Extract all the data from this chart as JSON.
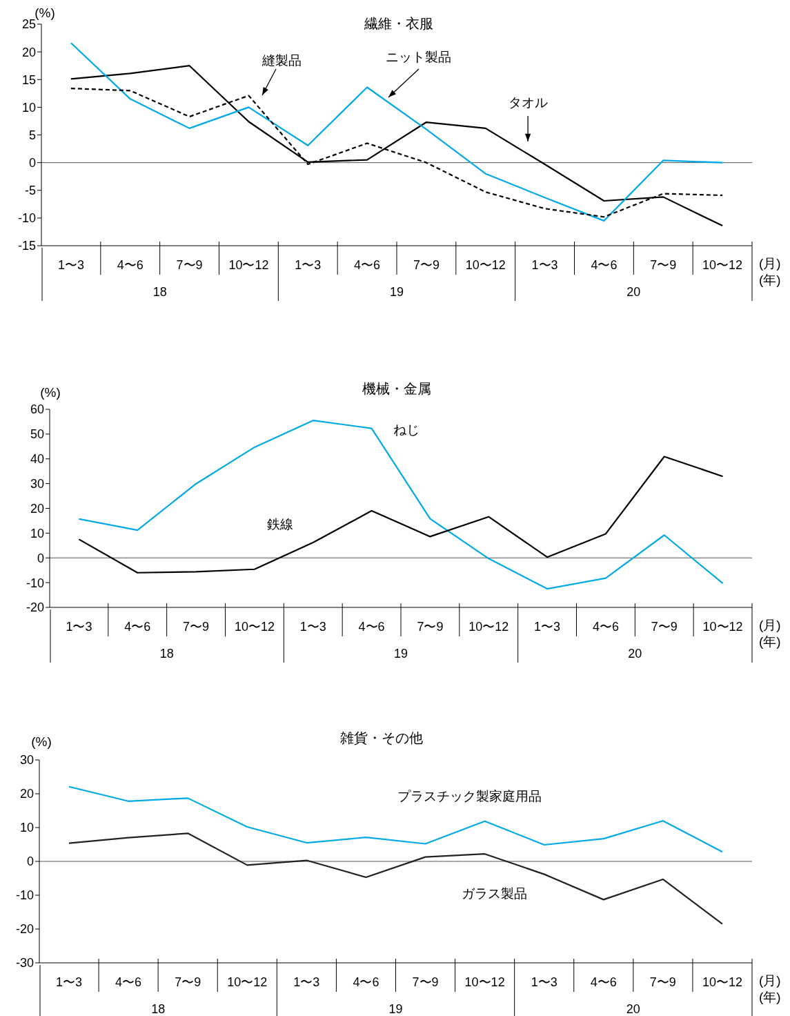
{
  "chart_data": [
    {
      "type": "line",
      "title": "繊維・衣服",
      "ylabel": "(%)",
      "xlabel": "(月)\n(年)",
      "categories": [
        "1〜3",
        "4〜6",
        "7〜9",
        "10〜12",
        "1〜3",
        "4〜6",
        "7〜9",
        "10〜12",
        "1〜3",
        "4〜6",
        "7〜9",
        "10〜12"
      ],
      "annotations": [
        "18",
        "19",
        "20"
      ],
      "ylim": [
        -15,
        25
      ],
      "yticks": [
        -15,
        -10,
        -5,
        0,
        5,
        10,
        15,
        20,
        25
      ],
      "grid": false,
      "ref_lines": [
        {
          "axis": "y",
          "value": 0,
          "color": "#555555"
        }
      ],
      "series": [
        {
          "name": "タオル",
          "color": "#000000",
          "line_style": "solid",
          "values": [
            15.1,
            16.1,
            17.5,
            7.4,
            0.1,
            0.5,
            7.3,
            6.2,
            -0.3,
            -6.9,
            -6.2,
            -11.4
          ]
        },
        {
          "name": "ニット製品",
          "color": "#00a9e8",
          "line_style": "solid",
          "values": [
            21.6,
            11.5,
            6.2,
            10.0,
            3.1,
            13.6,
            6.0,
            -2.0,
            -6.3,
            -10.5,
            0.4,
            0.0
          ]
        },
        {
          "name": "縫製品",
          "color": "#000000",
          "line_style": "dashed",
          "values": [
            13.4,
            13.0,
            8.3,
            12.1,
            -0.3,
            3.5,
            0.0,
            -5.3,
            -8.3,
            -9.8,
            -5.6,
            -5.9
          ]
        }
      ]
    },
    {
      "type": "line",
      "title": "機械・金属",
      "ylabel": "(%)",
      "xlabel": "(月)\n(年)",
      "categories": [
        "1〜3",
        "4〜6",
        "7〜9",
        "10〜12",
        "1〜3",
        "4〜6",
        "7〜9",
        "10〜12",
        "1〜3",
        "4〜6",
        "7〜9",
        "10〜12"
      ],
      "annotations": [
        "18",
        "19",
        "20"
      ],
      "ylim": [
        -20,
        60
      ],
      "yticks": [
        -20,
        -10,
        0,
        10,
        20,
        30,
        40,
        50,
        60
      ],
      "grid": false,
      "ref_lines": [
        {
          "axis": "y",
          "value": 0,
          "color": "#555555"
        }
      ],
      "series": [
        {
          "name": "ねじ",
          "color": "#00a9e8",
          "line_style": "solid",
          "values": [
            15.7,
            11.2,
            29.9,
            44.7,
            55.5,
            52.3,
            15.8,
            -0.3,
            -12.5,
            -8.2,
            9.2,
            -10.3
          ]
        },
        {
          "name": "鉄線",
          "color": "#000000",
          "line_style": "solid",
          "values": [
            7.5,
            -6.0,
            -5.6,
            -4.6,
            6.2,
            19.0,
            8.6,
            16.6,
            0.3,
            9.7,
            40.9,
            32.9
          ]
        }
      ]
    },
    {
      "type": "line",
      "title": "雑貨・その他",
      "ylabel": "(%)",
      "xlabel": "(月)\n(年)",
      "categories": [
        "1〜3",
        "4〜6",
        "7〜9",
        "10〜12",
        "1〜3",
        "4〜6",
        "7〜9",
        "10〜12",
        "1〜3",
        "4〜6",
        "7〜9",
        "10〜12"
      ],
      "annotations": [
        "18",
        "19",
        "20"
      ],
      "ylim": [
        -30,
        30
      ],
      "yticks": [
        -30,
        -20,
        -10,
        0,
        10,
        20,
        30
      ],
      "grid": false,
      "ref_lines": [
        {
          "axis": "y",
          "value": 0,
          "color": "#555555"
        }
      ],
      "series": [
        {
          "name": "プラスチック製家庭用品",
          "color": "#00a9e8",
          "line_style": "solid",
          "values": [
            22.1,
            17.8,
            18.7,
            10.2,
            5.5,
            7.1,
            5.2,
            11.9,
            4.9,
            6.7,
            12.0,
            2.8
          ]
        },
        {
          "name": "ガラス製品",
          "color": "#222222",
          "line_style": "solid",
          "values": [
            5.4,
            7.0,
            8.3,
            -1.1,
            0.3,
            -4.7,
            1.3,
            2.2,
            -3.8,
            -11.3,
            -5.3,
            -18.5
          ]
        }
      ]
    }
  ]
}
